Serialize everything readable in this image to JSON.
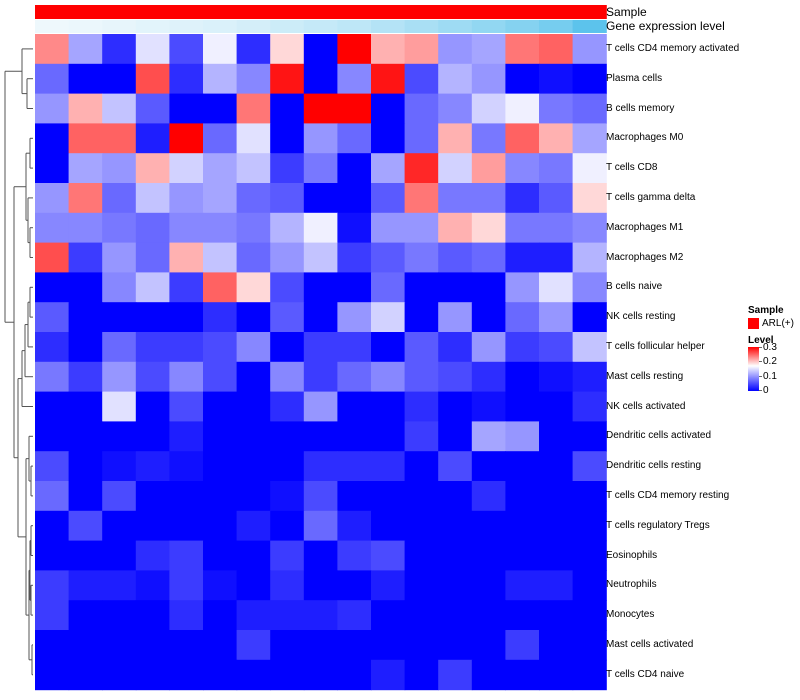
{
  "colors": {
    "low": "#0000ff",
    "mid": "#ffffff",
    "high": "#ff0000",
    "sample_bar": "#ff0000",
    "dendrogram": "#555555",
    "expr_light": "#eef8fc",
    "expr_dark": "#5cc3ec"
  },
  "annotations": {
    "sample_label": "Sample",
    "expression_label": "Gene expression level"
  },
  "legend": {
    "sample_title": "Sample",
    "sample_entry": "ARL(+)",
    "level_title": "Level",
    "ticks": [
      "0.3",
      "0.2",
      "0.1",
      "0"
    ]
  },
  "chart_data": {
    "type": "heatmap",
    "title": "",
    "value_range": [
      0,
      0.3
    ],
    "color_mid_value": 0.17,
    "n_columns": 17,
    "rows": [
      "T cells CD4 memory activated",
      "Plasma cells",
      "B cells memory",
      "Macrophages M0",
      "T cells CD8",
      "T cells gamma delta",
      "Macrophages M1",
      "Macrophages M2",
      "B cells naive",
      "NK cells resting",
      "T cells follicular helper",
      "Mast cells resting",
      "NK cells activated",
      "Dendritic cells activated",
      "Dendritic cells resting",
      "T cells CD4 memory resting",
      "T cells regulatory  Tregs",
      "Eosinophils",
      "Neutrophils",
      "Monocytes",
      "Mast cells activated",
      "T cells CD4 naive"
    ],
    "values": [
      [
        0.23,
        0.11,
        0.03,
        0.15,
        0.05,
        0.16,
        0.03,
        0.19,
        0.0,
        0.3,
        0.21,
        0.22,
        0.1,
        0.11,
        0.24,
        0.25,
        0.1
      ],
      [
        0.07,
        0.0,
        0.0,
        0.26,
        0.03,
        0.12,
        0.09,
        0.29,
        0.0,
        0.09,
        0.29,
        0.05,
        0.12,
        0.1,
        0.0,
        0.01,
        0.0
      ],
      [
        0.1,
        0.21,
        0.13,
        0.06,
        0.0,
        0.0,
        0.24,
        0.0,
        0.3,
        0.3,
        0.0,
        0.07,
        0.09,
        0.14,
        0.16,
        0.08,
        0.07
      ],
      [
        0.0,
        0.25,
        0.25,
        0.02,
        0.3,
        0.07,
        0.15,
        0.0,
        0.1,
        0.07,
        0.0,
        0.07,
        0.21,
        0.08,
        0.25,
        0.21,
        0.11
      ],
      [
        0.0,
        0.11,
        0.1,
        0.21,
        0.14,
        0.11,
        0.13,
        0.04,
        0.08,
        0.0,
        0.11,
        0.28,
        0.14,
        0.22,
        0.09,
        0.08,
        0.16
      ],
      [
        0.1,
        0.24,
        0.07,
        0.13,
        0.1,
        0.11,
        0.07,
        0.06,
        0.0,
        0.0,
        0.06,
        0.24,
        0.08,
        0.08,
        0.03,
        0.06,
        0.19
      ],
      [
        0.09,
        0.09,
        0.08,
        0.07,
        0.09,
        0.09,
        0.08,
        0.12,
        0.16,
        0.01,
        0.1,
        0.1,
        0.21,
        0.19,
        0.08,
        0.08,
        0.09
      ],
      [
        0.26,
        0.04,
        0.1,
        0.07,
        0.21,
        0.13,
        0.07,
        0.1,
        0.13,
        0.04,
        0.06,
        0.08,
        0.06,
        0.07,
        0.02,
        0.02,
        0.12
      ],
      [
        0.0,
        0.0,
        0.09,
        0.13,
        0.04,
        0.25,
        0.19,
        0.05,
        0.0,
        0.0,
        0.07,
        0.0,
        0.0,
        0.0,
        0.1,
        0.15,
        0.09
      ],
      [
        0.06,
        0.0,
        0.0,
        0.0,
        0.0,
        0.03,
        0.0,
        0.06,
        0.0,
        0.1,
        0.14,
        0.0,
        0.1,
        0.0,
        0.07,
        0.1,
        0.0
      ],
      [
        0.03,
        0.0,
        0.07,
        0.04,
        0.04,
        0.05,
        0.09,
        0.0,
        0.04,
        0.04,
        0.0,
        0.06,
        0.03,
        0.1,
        0.04,
        0.05,
        0.13
      ],
      [
        0.08,
        0.04,
        0.1,
        0.05,
        0.09,
        0.05,
        0.0,
        0.09,
        0.04,
        0.07,
        0.09,
        0.06,
        0.05,
        0.03,
        0.0,
        0.01,
        0.02
      ],
      [
        0.0,
        0.0,
        0.15,
        0.0,
        0.05,
        0.0,
        0.0,
        0.03,
        0.1,
        0.0,
        0.0,
        0.03,
        0.0,
        0.01,
        0.0,
        0.0,
        0.03
      ],
      [
        0.0,
        0.0,
        0.0,
        0.0,
        0.02,
        0.0,
        0.0,
        0.0,
        0.0,
        0.0,
        0.0,
        0.04,
        0.0,
        0.11,
        0.1,
        0.0,
        0.0
      ],
      [
        0.05,
        0.0,
        0.01,
        0.02,
        0.01,
        0.0,
        0.0,
        0.0,
        0.03,
        0.03,
        0.03,
        0.0,
        0.05,
        0.0,
        0.0,
        0.0,
        0.05
      ],
      [
        0.07,
        0.0,
        0.05,
        0.0,
        0.0,
        0.0,
        0.0,
        0.01,
        0.05,
        0.0,
        0.0,
        0.0,
        0.0,
        0.03,
        0.0,
        0.0,
        0.0
      ],
      [
        0.0,
        0.05,
        0.0,
        0.0,
        0.0,
        0.0,
        0.02,
        0.0,
        0.07,
        0.02,
        0.0,
        0.0,
        0.0,
        0.0,
        0.0,
        0.0,
        0.0
      ],
      [
        0.0,
        0.0,
        0.0,
        0.03,
        0.04,
        0.0,
        0.0,
        0.04,
        0.0,
        0.04,
        0.05,
        0.0,
        0.0,
        0.0,
        0.0,
        0.0,
        0.0
      ],
      [
        0.04,
        0.02,
        0.02,
        0.01,
        0.04,
        0.01,
        0.0,
        0.03,
        0.0,
        0.0,
        0.02,
        0.0,
        0.0,
        0.0,
        0.02,
        0.02,
        0.0
      ],
      [
        0.04,
        0.0,
        0.0,
        0.0,
        0.03,
        0.0,
        0.02,
        0.02,
        0.02,
        0.03,
        0.0,
        0.0,
        0.0,
        0.0,
        0.0,
        0.0,
        0.0
      ],
      [
        0.0,
        0.0,
        0.0,
        0.0,
        0.0,
        0.0,
        0.04,
        0.0,
        0.0,
        0.0,
        0.0,
        0.0,
        0.0,
        0.0,
        0.04,
        0.0,
        0.0
      ],
      [
        0.0,
        0.0,
        0.0,
        0.0,
        0.0,
        0.0,
        0.0,
        0.0,
        0.0,
        0.0,
        0.02,
        0.0,
        0.04,
        0.0,
        0.0,
        0.0,
        0.0
      ]
    ],
    "column_annotation": {
      "sample": "ARL(+)",
      "gene_expression_level": [
        0.0,
        0.02,
        0.05,
        0.08,
        0.11,
        0.14,
        0.18,
        0.23,
        0.28,
        0.33,
        0.4,
        0.47,
        0.55,
        0.63,
        0.72,
        0.82,
        1.0
      ]
    },
    "legend_position": "right"
  }
}
